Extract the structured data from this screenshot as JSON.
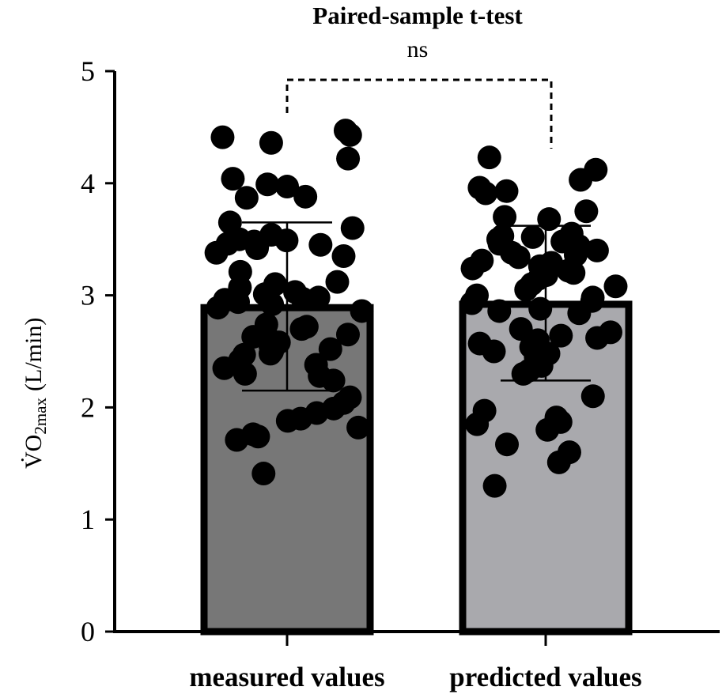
{
  "chart_data": {
    "type": "bar",
    "title": "Paired-sample t-test",
    "significance_label": "ns",
    "ylabel_main": "V̇O",
    "ylabel_sub": "2max",
    "ylabel_unit": "(L/min)",
    "ylim": [
      0,
      5
    ],
    "yticks": [
      "0",
      "1",
      "2",
      "3",
      "4",
      "5"
    ],
    "categories": [
      "measured values",
      "predicted values"
    ],
    "means": [
      2.89,
      2.92
    ],
    "error_high": [
      3.65,
      3.62
    ],
    "error_low": [
      2.15,
      2.24
    ],
    "bar_colors": [
      "#777777",
      "#a9a9ad"
    ],
    "points": [
      [
        4.47,
        4.43,
        4.41,
        4.36,
        4.22,
        4.04,
        3.99,
        3.97,
        3.88,
        3.87,
        3.65,
        3.6,
        3.54,
        3.5,
        3.49,
        3.48,
        3.46,
        3.45,
        3.44,
        3.42,
        3.38,
        3.35,
        3.21,
        3.12,
        3.1,
        3.07,
        3.03,
        3.01,
        2.98,
        2.97,
        2.96,
        2.94,
        2.92,
        2.89,
        2.86,
        2.74,
        2.72,
        2.7,
        2.65,
        2.63,
        2.6,
        2.58,
        2.55,
        2.52,
        2.5,
        2.48,
        2.47,
        2.42,
        2.38,
        2.35,
        2.3,
        2.28,
        2.24,
        2.09,
        2.04,
        1.99,
        1.95,
        1.9,
        1.88,
        1.82,
        1.76,
        1.74,
        1.71,
        1.41
      ],
      [
        4.23,
        4.12,
        4.03,
        3.96,
        3.93,
        3.91,
        3.75,
        3.7,
        3.68,
        3.55,
        3.53,
        3.52,
        3.5,
        3.48,
        3.46,
        3.44,
        3.4,
        3.38,
        3.36,
        3.34,
        3.31,
        3.29,
        3.26,
        3.24,
        3.22,
        3.2,
        3.18,
        3.15,
        3.1,
        3.08,
        3.05,
        3.0,
        2.98,
        2.95,
        2.93,
        2.88,
        2.86,
        2.84,
        2.7,
        2.67,
        2.64,
        2.62,
        2.6,
        2.57,
        2.54,
        2.5,
        2.48,
        2.45,
        2.37,
        2.33,
        2.3,
        2.1,
        1.97,
        1.91,
        1.87,
        1.85,
        1.8,
        1.67,
        1.6,
        1.51,
        1.3
      ]
    ]
  }
}
